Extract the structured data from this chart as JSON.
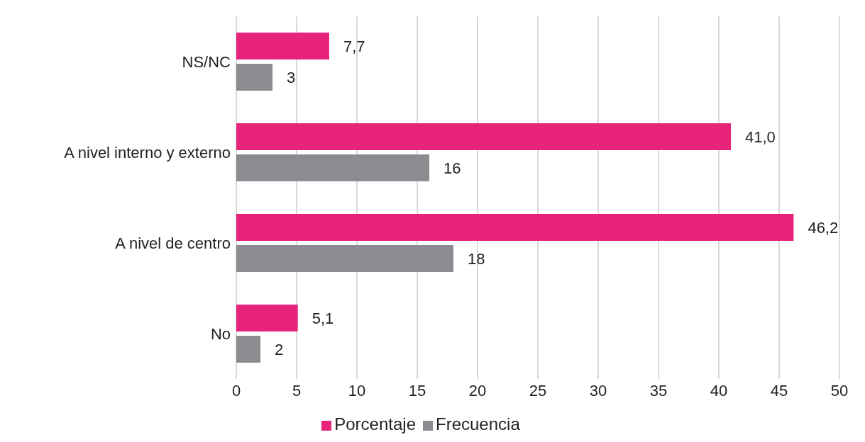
{
  "chart_data": {
    "type": "bar",
    "orientation": "horizontal",
    "categories": [
      "NS/NC",
      "A nivel interno y externo",
      "A nivel de centro",
      "No"
    ],
    "series": [
      {
        "name": "Porcentaje",
        "color": "#e8237a",
        "values": [
          7.7,
          41.0,
          46.2,
          5.1
        ],
        "value_labels": [
          "7,7",
          "41,0",
          "46,2",
          "5,1"
        ]
      },
      {
        "name": "Frecuencia",
        "color": "#8b8b90",
        "values": [
          3,
          16,
          18,
          2
        ],
        "value_labels": [
          "3",
          "16",
          "18",
          "2"
        ]
      }
    ],
    "xlim": [
      0,
      50
    ],
    "xticks": [
      0,
      5,
      10,
      15,
      20,
      25,
      30,
      35,
      40,
      45,
      50
    ],
    "grid": "x",
    "legend": "bottom"
  }
}
